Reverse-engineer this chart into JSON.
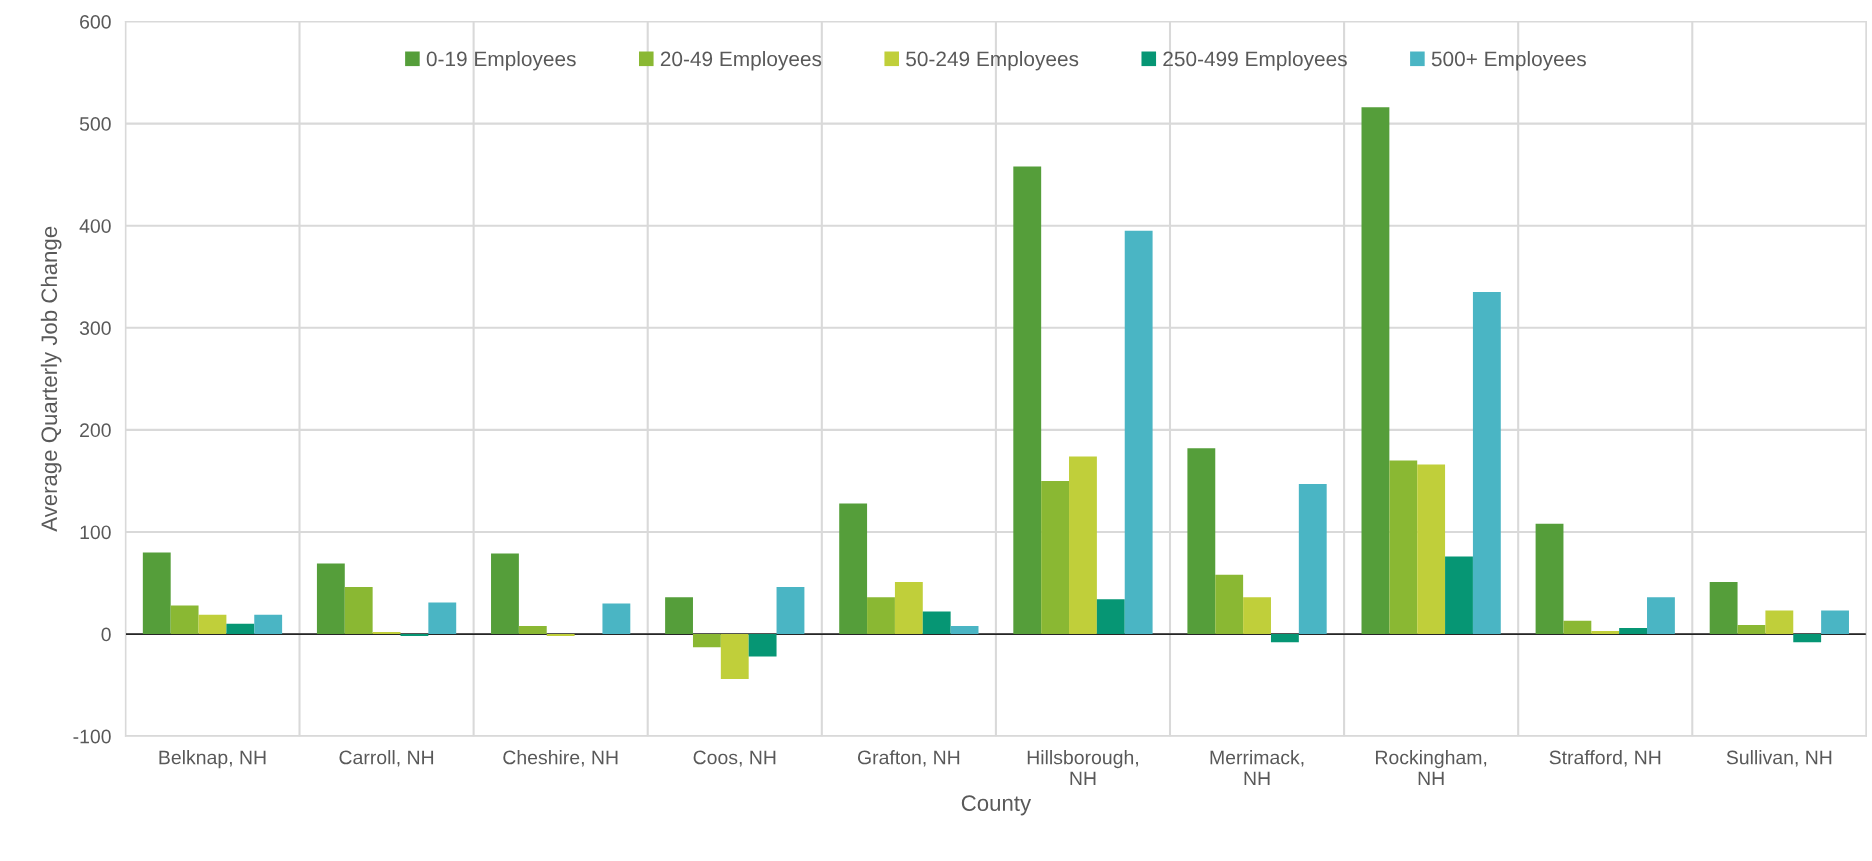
{
  "chart_data": {
    "type": "bar",
    "xlabel": "County",
    "ylabel": "Average Quarterly Job Change",
    "categories": [
      "Belknap, NH",
      "Carroll, NH",
      "Cheshire, NH",
      "Coos, NH",
      "Grafton, NH",
      "Hillsborough,\nNH",
      "Merrimack,\nNH",
      "Rockingham,\nNH",
      "Strafford, NH",
      "Sullivan, NH"
    ],
    "series": [
      {
        "name": "0-19 Employees",
        "color": "#559e3a",
        "values": [
          80,
          69,
          79,
          36,
          128,
          458,
          182,
          516,
          108,
          51
        ]
      },
      {
        "name": "20-49 Employees",
        "color": "#8ab833",
        "values": [
          28,
          46,
          8,
          -13,
          36,
          150,
          58,
          170,
          13,
          9
        ]
      },
      {
        "name": "50-249 Employees",
        "color": "#c0cf3a",
        "values": [
          19,
          2,
          -2,
          -44,
          51,
          174,
          36,
          166,
          3,
          23
        ]
      },
      {
        "name": "250-499 Employees",
        "color": "#069674",
        "values": [
          10,
          -2,
          0,
          -22,
          22,
          34,
          -8,
          76,
          6,
          -8
        ]
      },
      {
        "name": "500+ Employees",
        "color": "#4ab5c4",
        "values": [
          19,
          31,
          30,
          46,
          8,
          395,
          147,
          335,
          36,
          23
        ]
      }
    ],
    "ylim": [
      -100,
      600
    ],
    "yticks": [
      {
        "value": -100,
        "label": "-100"
      },
      0,
      100,
      200,
      300,
      400,
      500,
      600
    ],
    "grid": true,
    "legend": "top"
  }
}
